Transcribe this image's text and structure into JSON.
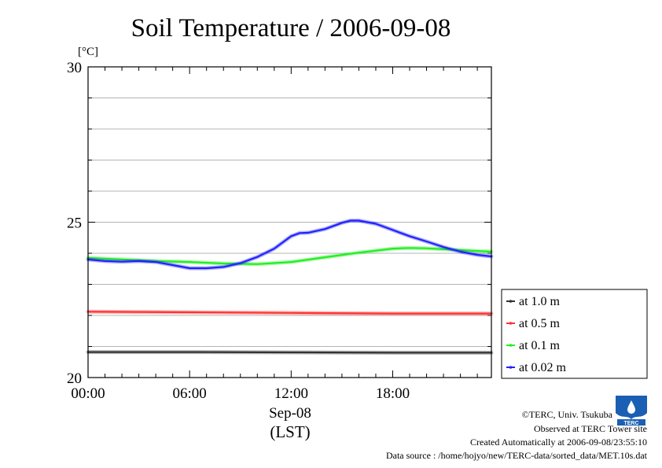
{
  "chart_data": {
    "type": "line",
    "title": "Soil Temperature / 2006-09-08",
    "ylabel": "[°C]",
    "ylim": [
      20,
      30
    ],
    "yticks": [
      20,
      25,
      30
    ],
    "grid_y_step": 1,
    "grid": true,
    "xlim": [
      0,
      23.83
    ],
    "x_ticks": [
      {
        "x": 0,
        "label": "00:00"
      },
      {
        "x": 6,
        "label": "06:00"
      },
      {
        "x": 12,
        "label": "12:00"
      },
      {
        "x": 18,
        "label": "18:00"
      }
    ],
    "xlabel_date": "Sep-08",
    "xlabel_unit": "(LST)",
    "legend_position": "right",
    "series": [
      {
        "name": "at 1.0 m",
        "color": "#333333",
        "x": [
          0,
          6,
          12,
          18,
          23.83
        ],
        "y": [
          20.82,
          20.82,
          20.81,
          20.8,
          20.8
        ]
      },
      {
        "name": "at 0.5 m",
        "color": "#ff3333",
        "x": [
          0,
          6,
          12,
          18,
          23.83
        ],
        "y": [
          22.12,
          22.1,
          22.08,
          22.06,
          22.06
        ]
      },
      {
        "name": "at 0.1 m",
        "color": "#22ee22",
        "x": [
          0,
          2,
          4,
          6,
          8,
          10,
          12,
          14,
          16,
          18,
          19,
          20,
          22,
          23.83
        ],
        "y": [
          23.85,
          23.8,
          23.75,
          23.72,
          23.67,
          23.65,
          23.72,
          23.87,
          24.02,
          24.15,
          24.17,
          24.16,
          24.1,
          24.05
        ]
      },
      {
        "name": "at 0.02 m",
        "color": "#2222ff",
        "x": [
          0,
          1,
          2,
          3,
          4,
          5,
          6,
          7,
          8,
          9,
          10,
          11,
          12,
          12.5,
          13,
          14,
          15,
          15.5,
          16,
          17,
          18,
          19,
          20,
          21,
          22,
          23,
          23.83
        ],
        "y": [
          23.8,
          23.75,
          23.73,
          23.75,
          23.72,
          23.62,
          23.52,
          23.52,
          23.56,
          23.68,
          23.88,
          24.15,
          24.55,
          24.65,
          24.66,
          24.78,
          24.98,
          25.05,
          25.05,
          24.95,
          24.75,
          24.55,
          24.38,
          24.2,
          24.05,
          23.95,
          23.9
        ]
      }
    ]
  },
  "credits": {
    "copyright": "©TERC, Univ. Tsukuba",
    "observed": "Observed at TERC Tower site",
    "created": "Created Automatically at 2006-09-08/23:55:10",
    "source": "Data source : /home/hojyo/new/TERC-data/sorted_data/MET.10s.dat"
  },
  "logo": {
    "text": "TERC",
    "color": "#1a5fb4"
  }
}
